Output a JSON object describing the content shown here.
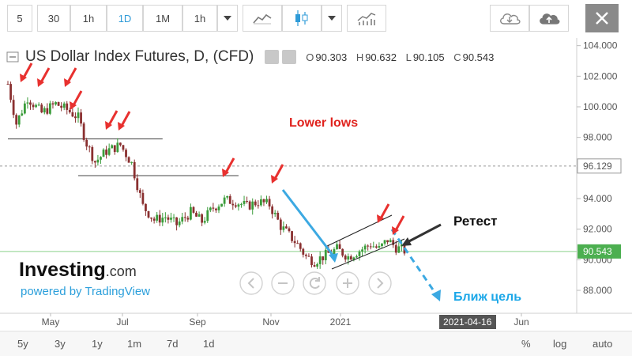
{
  "toolbar": {
    "intervals": [
      "5",
      "30",
      "1h",
      "1D",
      "1M",
      "1h"
    ],
    "active_interval": "1D"
  },
  "legend": {
    "title": "US Dollar Index Futures, D, (CFD)",
    "open_label": "O",
    "open": "90.303",
    "high_label": "H",
    "high": "90.632",
    "low_label": "L",
    "low": "90.105",
    "close_label": "C",
    "close": "90.543"
  },
  "annotations": {
    "lower_lows": "Lower lows",
    "retest": "Ретест",
    "target": "Ближ цель"
  },
  "branding": {
    "investing": "Investing",
    "dotcom": ".com",
    "powered": "powered by TradingView"
  },
  "price_labels": {
    "last": "90.543",
    "marker": "96.129",
    "crosshair_date": "2021-04-16"
  },
  "bottom": {
    "ranges": [
      "5y",
      "3y",
      "1y",
      "1m",
      "7d",
      "1d"
    ],
    "options": [
      "%",
      "log",
      "auto"
    ]
  },
  "colors": {
    "up": "#3a9c3a",
    "down": "#8a3030",
    "arrow_red": "#e8312f",
    "channel_blue": "#3ca9e2",
    "annotation_red": "#e0221d",
    "last_price_green": "#4caf50"
  },
  "chart_data": {
    "type": "candlestick",
    "title": "US Dollar Index Futures, D, (CFD)",
    "x_ticks": [
      "May",
      "Jul",
      "Sep",
      "Nov",
      "2021",
      "Jun"
    ],
    "y_ticks": [
      88,
      90,
      92,
      94,
      96,
      98,
      100,
      102,
      104
    ],
    "y_tick_labels": [
      "88.000",
      "90.000",
      "92.000",
      "94.000",
      "96.000",
      "98.000",
      "100.000",
      "102.000",
      "104.000"
    ],
    "ylim": [
      86.5,
      104.5
    ],
    "last_price": 90.543,
    "marked_level": 96.129,
    "close_path": [
      [
        0,
        101.5
      ],
      [
        6,
        98.9
      ],
      [
        14,
        100.6
      ],
      [
        24,
        99.6
      ],
      [
        34,
        100.2
      ],
      [
        42,
        99.8
      ],
      [
        50,
        99.3
      ],
      [
        56,
        97.6
      ],
      [
        62,
        96.4
      ],
      [
        70,
        97.1
      ],
      [
        80,
        97.5
      ],
      [
        88,
        96.3
      ],
      [
        96,
        93.5
      ],
      [
        104,
        92.6
      ],
      [
        112,
        92.8
      ],
      [
        120,
        92.3
      ],
      [
        130,
        93.1
      ],
      [
        138,
        92.5
      ],
      [
        146,
        93.4
      ],
      [
        154,
        93.9
      ],
      [
        162,
        93.8
      ],
      [
        170,
        93.5
      ],
      [
        178,
        93.8
      ],
      [
        186,
        93.6
      ],
      [
        194,
        92.2
      ],
      [
        200,
        91.6
      ],
      [
        206,
        91.0
      ],
      [
        212,
        90.2
      ],
      [
        218,
        89.9
      ],
      [
        226,
        90.3
      ],
      [
        234,
        90.7
      ],
      [
        242,
        90.2
      ],
      [
        250,
        90.6
      ],
      [
        258,
        91.0
      ],
      [
        264,
        90.7
      ],
      [
        270,
        91.3
      ],
      [
        276,
        90.8
      ],
      [
        282,
        90.6
      ]
    ],
    "resistance_lines": [
      {
        "from_day": 0,
        "to_day": 110,
        "level": 97.9
      },
      {
        "from_day": 50,
        "to_day": 164,
        "level": 95.5
      }
    ]
  }
}
